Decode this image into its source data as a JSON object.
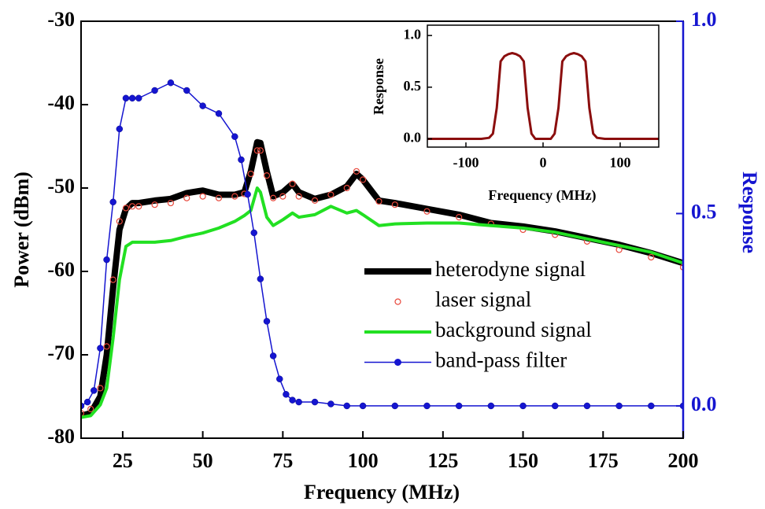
{
  "chart_data": [
    {
      "type": "line",
      "x_label": "Frequency (MHz)",
      "y_label": "Power (dBm)",
      "y2_label": "Response",
      "xlim": [
        12,
        200
      ],
      "xticks": [
        25,
        50,
        75,
        100,
        125,
        150,
        175,
        200
      ],
      "ylim": [
        -80,
        -30
      ],
      "yticks": [
        -80,
        -70,
        -60,
        -50,
        -40,
        -30
      ],
      "y2lim": [
        -0.084,
        1.0
      ],
      "y2ticks": [
        {
          "value": 0,
          "label": "0.0"
        },
        {
          "value": 0.5,
          "label": "0.5"
        },
        {
          "value": 1,
          "label": "1.0"
        }
      ],
      "y2_color": "#1515d0",
      "series": [
        {
          "name": "heterodyne signal",
          "color": "#000000",
          "style": "thick-line",
          "x": [
            12,
            15,
            18,
            20,
            22,
            24,
            26,
            28,
            30,
            35,
            40,
            45,
            50,
            55,
            60,
            63,
            65,
            67,
            68,
            70,
            72,
            75,
            78,
            80,
            85,
            90,
            95,
            98,
            100,
            105,
            110,
            120,
            130,
            140,
            150,
            160,
            170,
            180,
            190,
            200
          ],
          "values": [
            -77.3,
            -77,
            -75,
            -70,
            -62,
            -55,
            -52.5,
            -51.8,
            -51.8,
            -51.5,
            -51.3,
            -50.6,
            -50.3,
            -50.8,
            -50.8,
            -50.5,
            -48,
            -44.5,
            -44.6,
            -48,
            -51,
            -50.5,
            -49.5,
            -50.5,
            -51.3,
            -50.8,
            -49.8,
            -48.3,
            -49,
            -51.5,
            -51.8,
            -52.5,
            -53.2,
            -54.2,
            -54.6,
            -55.2,
            -56,
            -56.8,
            -57.8,
            -59
          ]
        },
        {
          "name": "laser signal",
          "color": "#e8483c",
          "style": "open-circles",
          "x": [
            12,
            15,
            18,
            20,
            22,
            24,
            26,
            28,
            30,
            35,
            40,
            45,
            50,
            55,
            60,
            63,
            65,
            67,
            68,
            70,
            72,
            75,
            78,
            80,
            85,
            90,
            95,
            98,
            100,
            105,
            110,
            120,
            130,
            140,
            150,
            160,
            170,
            180,
            190,
            200
          ],
          "values": [
            -77,
            -76.5,
            -74,
            -69,
            -61,
            -54,
            -52.4,
            -52.2,
            -52.2,
            -52,
            -51.8,
            -51.2,
            -51,
            -51.2,
            -51,
            -50.7,
            -48.3,
            -45.5,
            -45.5,
            -48.5,
            -51.2,
            -51,
            -49.5,
            -51,
            -51.5,
            -50.8,
            -50,
            -48,
            -49,
            -51.6,
            -52,
            -52.8,
            -53.5,
            -54.3,
            -55,
            -55.6,
            -56.4,
            -57.4,
            -58.3,
            -59.5
          ]
        },
        {
          "name": "background signal",
          "color": "#22e022",
          "style": "line",
          "x": [
            12,
            15,
            18,
            20,
            22,
            24,
            26,
            28,
            30,
            35,
            40,
            45,
            50,
            55,
            60,
            63,
            65,
            67,
            68,
            70,
            72,
            75,
            78,
            80,
            85,
            90,
            95,
            98,
            100,
            105,
            110,
            120,
            130,
            140,
            150,
            160,
            170,
            180,
            190,
            200
          ],
          "values": [
            -77.5,
            -77.3,
            -76,
            -74,
            -68,
            -61,
            -57,
            -56.5,
            -56.5,
            -56.5,
            -56.3,
            -55.8,
            -55.4,
            -54.8,
            -54,
            -53.3,
            -52.7,
            -50,
            -50.5,
            -53.5,
            -54.5,
            -53.8,
            -53,
            -53.5,
            -53.2,
            -52.2,
            -53,
            -52.7,
            -53.2,
            -54.5,
            -54.3,
            -54.2,
            -54.2,
            -54.5,
            -54.8,
            -55.3,
            -56.1,
            -56.9,
            -57.7,
            -59
          ]
        },
        {
          "name": "band-pass filter",
          "color": "#1515d0",
          "style": "line-dots",
          "axis": "y2",
          "x": [
            12,
            14,
            16,
            18,
            20,
            22,
            24,
            26,
            28,
            30,
            35,
            40,
            45,
            50,
            55,
            60,
            62,
            64,
            66,
            68,
            70,
            72,
            74,
            76,
            78,
            80,
            85,
            90,
            95,
            100,
            110,
            120,
            130,
            140,
            150,
            160,
            170,
            180,
            190,
            200
          ],
          "values": [
            0,
            0.01,
            0.04,
            0.15,
            0.38,
            0.53,
            0.72,
            0.8,
            0.8,
            0.8,
            0.82,
            0.84,
            0.82,
            0.78,
            0.76,
            0.7,
            0.64,
            0.55,
            0.45,
            0.33,
            0.22,
            0.13,
            0.07,
            0.03,
            0.015,
            0.01,
            0.01,
            0.005,
            0,
            0,
            0,
            0,
            0,
            0,
            0,
            0,
            0,
            0,
            0,
            0
          ]
        }
      ]
    },
    {
      "type": "line",
      "x_label": "Frequency (MHz)",
      "y_label": "Response",
      "xlim": [
        -150,
        150
      ],
      "xticks": [
        -100,
        0,
        100
      ],
      "ylim": [
        -0.08,
        1.1
      ],
      "yticks": [
        {
          "value": 0,
          "label": "0.0"
        },
        {
          "value": 0.5,
          "label": "0.5"
        },
        {
          "value": 1,
          "label": "1.0"
        }
      ],
      "series": [
        {
          "color": "#8b0e0e",
          "style": "line",
          "x": [
            -150,
            -100,
            -80,
            -70,
            -65,
            -60,
            -55,
            -50,
            -45,
            -40,
            -35,
            -30,
            -25,
            -20,
            -15,
            -10,
            0,
            10,
            15,
            20,
            25,
            30,
            35,
            40,
            45,
            50,
            55,
            60,
            65,
            70,
            80,
            100,
            150
          ],
          "values": [
            0,
            0,
            0,
            0.01,
            0.05,
            0.3,
            0.75,
            0.8,
            0.82,
            0.83,
            0.82,
            0.8,
            0.75,
            0.3,
            0.05,
            0,
            0,
            0,
            0.05,
            0.3,
            0.75,
            0.8,
            0.82,
            0.83,
            0.82,
            0.8,
            0.75,
            0.3,
            0.05,
            0.01,
            0,
            0,
            0
          ]
        }
      ]
    }
  ]
}
